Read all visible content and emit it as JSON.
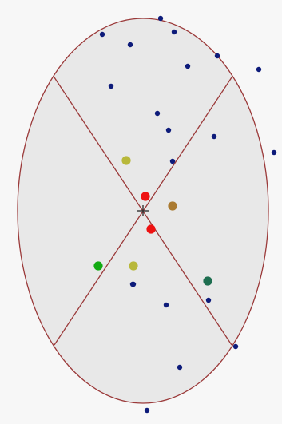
{
  "colors": {
    "background": "#f7f7f7",
    "ellipse_fill": "#e8e8e8",
    "ellipse_stroke": "#9b3a3a",
    "divider_stroke": "#9b3a3a",
    "center_mark": "#333333"
  },
  "center_marker": {
    "icon": "crosshair-icon"
  },
  "small_dots": [
    {
      "color": "#0d1b7a"
    },
    {
      "color": "#0d1b7a"
    },
    {
      "color": "#0d1b7a"
    },
    {
      "color": "#0d1b7a"
    },
    {
      "color": "#0d1b7a"
    },
    {
      "color": "#0d1b7a"
    },
    {
      "color": "#0d1b7a"
    },
    {
      "color": "#0d1b7a"
    },
    {
      "color": "#0d1b7a"
    },
    {
      "color": "#0d1b7a"
    },
    {
      "color": "#0d1b7a"
    },
    {
      "color": "#0d1b7a"
    },
    {
      "color": "#0d1b7a"
    },
    {
      "color": "#0d1b7a"
    },
    {
      "color": "#0d1b7a"
    },
    {
      "color": "#0d1b7a"
    },
    {
      "color": "#0d1b7a"
    },
    {
      "color": "#0d1b7a"
    },
    {
      "color": "#0d1b7a"
    },
    {
      "color": "#0d1b7a"
    }
  ],
  "large_dots": [
    {
      "color": "#b8b83a"
    },
    {
      "color": "#ee1111"
    },
    {
      "color": "#aa7a30"
    },
    {
      "color": "#ee1111"
    },
    {
      "color": "#11aa11"
    },
    {
      "color": "#b8b83a"
    },
    {
      "color": "#1e6e50"
    }
  ]
}
